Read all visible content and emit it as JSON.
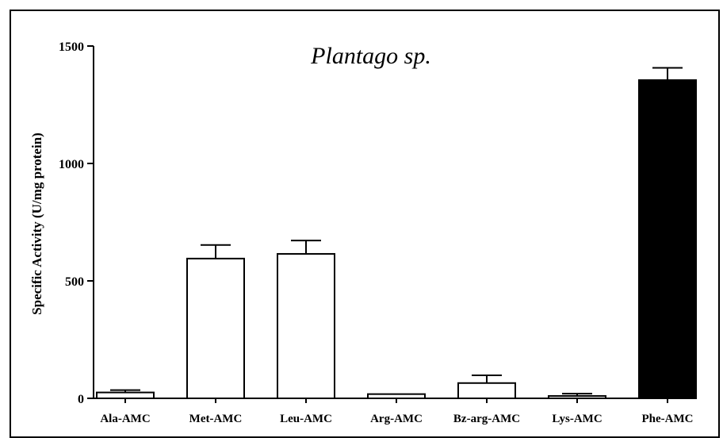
{
  "chart_data": {
    "type": "bar",
    "title": "Plantago sp.",
    "xlabel": "",
    "ylabel": "Specific Activity (U/mg protein)",
    "ylim": [
      0,
      1500
    ],
    "yticks": [
      0,
      500,
      1000,
      1500
    ],
    "categories": [
      "Ala-AMC",
      "Met-AMC",
      "Leu-AMC",
      "Arg-AMC",
      "Bz-arg-AMC",
      "Lys-AMC",
      "Phe-AMC"
    ],
    "values": [
      25,
      595,
      615,
      18,
      65,
      10,
      1355
    ],
    "errors": [
      10,
      58,
      57,
      0,
      33,
      10,
      52
    ],
    "bar_fill": [
      "#ffffff",
      "#ffffff",
      "#ffffff",
      "#ffffff",
      "#ffffff",
      "#ffffff",
      "#000000"
    ],
    "bar_stroke": "#000000",
    "grid": false,
    "legend": "none"
  }
}
